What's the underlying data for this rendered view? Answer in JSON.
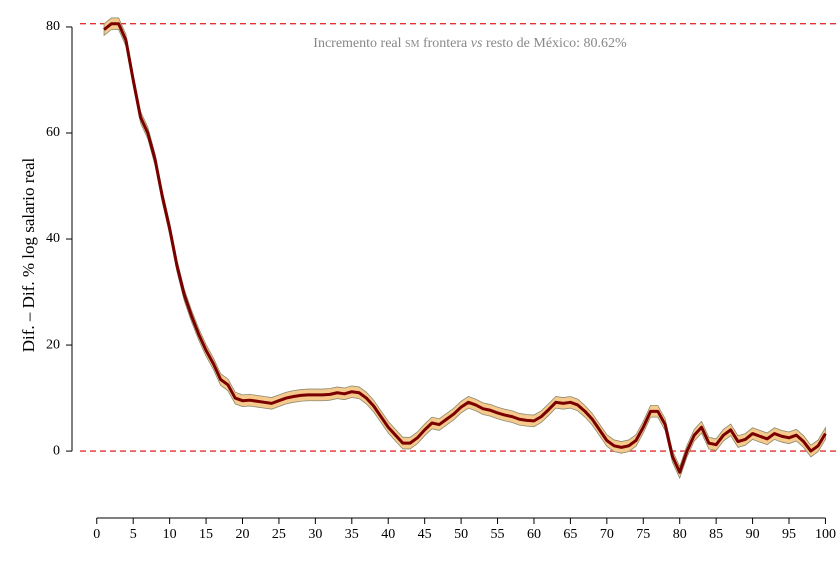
{
  "chart_data": {
    "type": "line",
    "ylabel": "Dif. – Dif.  % log salario real",
    "annotation": [
      "Incremento real ",
      "sm",
      " frontera ",
      "vs",
      " resto de México: 80.62%"
    ],
    "hlines": [
      80.62,
      0
    ],
    "hline_color": "#e03030",
    "x": [
      1,
      2,
      3,
      4,
      5,
      6,
      7,
      8,
      9,
      10,
      11,
      12,
      13,
      14,
      15,
      16,
      17,
      18,
      19,
      20,
      21,
      22,
      23,
      24,
      25,
      26,
      27,
      28,
      29,
      30,
      31,
      32,
      33,
      34,
      35,
      36,
      37,
      38,
      39,
      40,
      41,
      42,
      43,
      44,
      45,
      46,
      47,
      48,
      49,
      50,
      51,
      52,
      53,
      54,
      55,
      56,
      57,
      58,
      59,
      60,
      61,
      62,
      63,
      64,
      65,
      66,
      67,
      68,
      69,
      70,
      71,
      72,
      73,
      74,
      75,
      76,
      77,
      78,
      79,
      80,
      81,
      82,
      83,
      84,
      85,
      86,
      87,
      88,
      89,
      90,
      91,
      92,
      93,
      94,
      95,
      96,
      97,
      98,
      99,
      100
    ],
    "series": [
      {
        "name": "Dif. – Dif.",
        "color": "#7a0000",
        "band_color": "#f6c98c",
        "ci_halfwidth": 1.1,
        "values": [
          79.5,
          80.6,
          80.6,
          77.5,
          70,
          63,
          60,
          55,
          48,
          42,
          35,
          29.5,
          25.5,
          22,
          19,
          16.5,
          13.5,
          12.5,
          10,
          9.5,
          9.6,
          9.4,
          9.2,
          9,
          9.5,
          10,
          10.3,
          10.5,
          10.6,
          10.6,
          10.6,
          10.7,
          11,
          10.8,
          11.2,
          11,
          10,
          8.5,
          6.5,
          4.5,
          3,
          1.5,
          1.5,
          2.5,
          4,
          5.3,
          5,
          6,
          7,
          8.3,
          9.2,
          8.7,
          8,
          7.7,
          7.2,
          6.8,
          6.5,
          6,
          5.8,
          5.7,
          6.5,
          7.8,
          9.2,
          9,
          9.2,
          8.7,
          7.5,
          6,
          4,
          2,
          1,
          0.7,
          1,
          2,
          4.5,
          7.5,
          7.5,
          5,
          -1,
          -4,
          0,
          3,
          4.5,
          1.5,
          1.2,
          3,
          4,
          1.8,
          2.2,
          3.3,
          2.8,
          2.3,
          3.3,
          2.8,
          2.5,
          3,
          1.8,
          0,
          1,
          3.3
        ]
      }
    ],
    "xlim": [
      -2.3,
      100.9
    ],
    "ylim": [
      -13,
      83.2
    ],
    "xticks": [
      0,
      5,
      10,
      15,
      20,
      25,
      30,
      35,
      40,
      45,
      50,
      55,
      60,
      65,
      70,
      75,
      80,
      85,
      90,
      95,
      100
    ],
    "yticks": [
      0,
      20,
      40,
      60,
      80
    ]
  }
}
